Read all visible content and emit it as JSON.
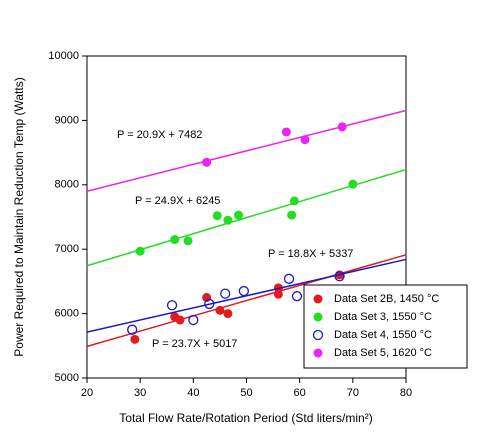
{
  "chart_data": {
    "type": "scatter",
    "xlabel": "Total Flow Rate/Rotation Period (Std liters/min²)",
    "ylabel": "Power Required to Maintain Reduction Temp (Watts)",
    "xlim": [
      20,
      80
    ],
    "ylim": [
      5000,
      10000
    ],
    "xticks": [
      20,
      30,
      40,
      50,
      60,
      70,
      80
    ],
    "yticks": [
      5000,
      6000,
      7000,
      8000,
      9000,
      10000
    ],
    "legend": "lower right",
    "series": [
      {
        "name": "Data Set 2B, 1450 °C",
        "color": "#e41a1c",
        "marker": "filled",
        "x": [
          29,
          36.5,
          37.5,
          42.5,
          45,
          46.5,
          56,
          56,
          67.5
        ],
        "values": [
          5600,
          5950,
          5900,
          6250,
          6050,
          6000,
          6400,
          6300,
          6600
        ],
        "fit": {
          "slope": 23.7,
          "intercept": 5017,
          "label": "P = 23.7X + 5017"
        }
      },
      {
        "name": "Data Set 3, 1550 °C",
        "color": "#22dd22",
        "marker": "filled",
        "x": [
          30,
          36.5,
          39,
          44.5,
          46.5,
          48.5,
          58.5,
          59,
          70
        ],
        "values": [
          6970,
          7150,
          7130,
          7520,
          7450,
          7530,
          7530,
          7750,
          8010
        ],
        "fit": {
          "slope": 24.9,
          "intercept": 6245,
          "label": "P = 24.9X + 6245"
        }
      },
      {
        "name": "Data Set 4, 1550 °C",
        "color": "#1a1acc",
        "marker": "open",
        "x": [
          28.5,
          36,
          43,
          40,
          46,
          49.5,
          58,
          59.5,
          67.5
        ],
        "values": [
          5750,
          6130,
          6150,
          5900,
          6310,
          6350,
          6540,
          6270,
          6580
        ],
        "fit": {
          "slope": 18.8,
          "intercept": 5337,
          "label": "P = 18.8X + 5337"
        }
      },
      {
        "name": "Data Set 5, 1620 °C",
        "color": "#ee22ee",
        "marker": "filled",
        "x": [
          42.5,
          57.5,
          61,
          68
        ],
        "values": [
          8350,
          8820,
          8700,
          8900
        ],
        "fit": {
          "slope": 20.9,
          "intercept": 7482,
          "label": "P = 20.9X + 7482"
        }
      }
    ]
  }
}
